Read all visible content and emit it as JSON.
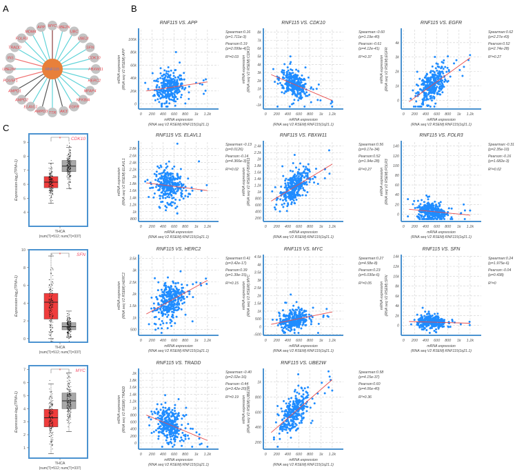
{
  "panel_labels": {
    "a": "A",
    "b": "B",
    "c": "C"
  },
  "network": {
    "center": {
      "label": "RNF115",
      "color": "#e8803a"
    },
    "node_color": "#c4c4c4",
    "label_color": "#e8414a",
    "nodes": [
      {
        "label": "MYC",
        "edge": "#8b3a3a"
      },
      {
        "label": "UBE2N",
        "edge": "#5fd3d8"
      },
      {
        "label": "UBC",
        "edge": "#5fd3d8"
      },
      {
        "label": "UBE2I",
        "edge": "#5fd3d8"
      },
      {
        "label": "SFN",
        "edge": "#5fd3d8"
      },
      {
        "label": "CDK10",
        "edge": "#5fd3d8"
      },
      {
        "label": "FBXW11",
        "edge": "#5fd3d8"
      },
      {
        "label": "HERC2",
        "edge": "#5fd3d8"
      },
      {
        "label": "MFAP4",
        "edge": "#5fd3d8"
      },
      {
        "label": "NFKBIA",
        "edge": "#5fd3d8"
      },
      {
        "label": "EGFR",
        "edge": "#5fd3d8"
      },
      {
        "label": "AK3",
        "edge": "#555555"
      },
      {
        "label": "TTR",
        "edge": "#5fd3d8"
      },
      {
        "label": "AMPD3",
        "edge": "#555555"
      },
      {
        "label": "ELAVL1",
        "edge": "#5fd3d8"
      },
      {
        "label": "AMPD2",
        "edge": "#555555"
      },
      {
        "label": "AMPD1",
        "edge": "#555555"
      },
      {
        "label": "POU5F1",
        "edge": "#f07070"
      },
      {
        "label": "UBE2W",
        "edge": "#5fd3d8"
      },
      {
        "label": "INS",
        "edge": "#f07070"
      },
      {
        "label": "TRADD",
        "edge": "#5fd3d8"
      },
      {
        "label": "FOLR3",
        "edge": "#5fd3d8"
      },
      {
        "label": "MDM4",
        "edge": "#5fd3d8"
      },
      {
        "label": "APP",
        "edge": "#5fd3d8"
      }
    ]
  },
  "chart_data": [
    {
      "type": "scatter",
      "title": "RNF115  VS.  APP",
      "xlabel": [
        "mRNA expression",
        "(RNA seq V2 RSEM):RNF115(1q21.1)"
      ],
      "ylabel": [
        "mRNA expression",
        "(RNA seq V2 RSEM):APP"
      ],
      "xlim": [
        -40,
        1400
      ],
      "ylim": [
        -8000,
        115000
      ],
      "xticks": [
        0,
        200,
        400,
        600,
        800,
        1000,
        1200
      ],
      "xtick_labels": [
        "0",
        "200",
        "400",
        "600",
        "800",
        "1k",
        "1.2k"
      ],
      "yticks": [
        0,
        20000,
        40000,
        60000,
        80000,
        100000
      ],
      "ytick_labels": [
        "0",
        "20k",
        "40k",
        "60k",
        "80k",
        "100k"
      ],
      "fit_line": [
        [
          100,
          20000
        ],
        [
          1200,
          34000
        ]
      ],
      "stats": [
        "Spearman:0.16",
        "(p=1.711e-3)",
        "Pearson:0.19",
        "(p=2.099e-4)",
        "R²=0.03"
      ],
      "grid": true
    },
    {
      "type": "scatter",
      "title": "RNF115  VS.  CDK10",
      "xlabel": [
        "mRNA expression",
        "(RNA seq V2 RSEM):RNF115(1q21.1)"
      ],
      "ylabel": [
        "mRNA expression",
        "(RNA seq V2 RSEM):CDK10"
      ],
      "xlim": [
        -40,
        1400
      ],
      "ylim": [
        -1500,
        8300
      ],
      "xticks": [
        0,
        200,
        400,
        600,
        800,
        1000,
        1200
      ],
      "xtick_labels": [
        "0",
        "200",
        "400",
        "600",
        "800",
        "1k",
        "1.2k"
      ],
      "yticks": [
        -1000,
        0,
        1000,
        2000,
        3000,
        4000,
        5000,
        6000,
        7000,
        8000
      ],
      "ytick_labels": [
        "-1k",
        "0",
        "1k",
        "2k",
        "3k",
        "4k",
        "5k",
        "6k",
        "7k",
        "8k"
      ],
      "fit_line": [
        [
          100,
          2750
        ],
        [
          1200,
          -450
        ]
      ],
      "stats": [
        "Spearman:-0.60",
        "(p=1.19e-40)",
        "Pearson:-0.61",
        "(p=4.12e-41)",
        "R²=0.37"
      ],
      "grid": true
    },
    {
      "type": "scatter",
      "title": "RNF115  VS.  EGFR",
      "xlabel": [
        "mRNA expression",
        "(RNA seq V2 RSEM):RNF115(1q21.1)"
      ],
      "ylabel": [
        "mRNA expression",
        "(RNA seq V2 RSEM):EGFR"
      ],
      "xlim": [
        -40,
        1400
      ],
      "ylim": [
        -600,
        4900
      ],
      "xticks": [
        0,
        200,
        400,
        600,
        800,
        1000,
        1200
      ],
      "xtick_labels": [
        "0",
        "200",
        "400",
        "600",
        "800",
        "1k",
        "1.2k"
      ],
      "yticks": [
        0,
        1000,
        2000,
        3000,
        4000
      ],
      "ytick_labels": [
        "0",
        "1k",
        "2k",
        "3k",
        "4k"
      ],
      "fit_line": [
        [
          100,
          -100
        ],
        [
          1200,
          2950
        ]
      ],
      "stats": [
        "Spearman:0.62",
        "(p=2.27e-43)",
        "Pearson:0.52",
        "(p=2.74e-28)",
        "R²=0.27"
      ],
      "grid": true
    },
    {
      "type": "scatter",
      "title": "RNF115  VS.  ELAVL1",
      "xlabel": [
        "mRNA expression",
        "(RNA seq V2 RSEM):RNF115(1q21.1)"
      ],
      "ylabel": [
        "mRNA expression",
        "(RNA seq V2 RSEM):ELAVL1"
      ],
      "xlim": [
        -40,
        1400
      ],
      "ylim": [
        720,
        2980
      ],
      "xticks": [
        0,
        200,
        400,
        600,
        800,
        1000,
        1200
      ],
      "xtick_labels": [
        "0",
        "200",
        "400",
        "600",
        "800",
        "1k",
        "1.2k"
      ],
      "yticks": [
        800,
        1000,
        1200,
        1400,
        1600,
        1800,
        2000,
        2200,
        2400,
        2600,
        2800
      ],
      "ytick_labels": [
        "800",
        "1k",
        "1.2k",
        "1.4k",
        "1.6k",
        "1.8k",
        "2k",
        "2.2k",
        "2.4k",
        "2.6k",
        "2.8k"
      ],
      "fit_line": [
        [
          100,
          1820
        ],
        [
          1200,
          1600
        ]
      ],
      "stats": [
        "Spearman:-0.13",
        "(p=0.0126)",
        "Pearson:-0.14",
        "(p=4.366e-3)",
        "R²=0.02"
      ],
      "grid": true
    },
    {
      "type": "scatter",
      "title": "RNF115  VS.  FBXW11",
      "xlabel": [
        "mRNA expression",
        "(RNA seq V2 RSEM):RNF115(1q21.1)"
      ],
      "ylabel": [
        "mRNA expression",
        "(RNA seq V2 RSEM):FBXW11"
      ],
      "xlim": [
        -40,
        1400
      ],
      "ylim": [
        100,
        2520
      ],
      "xticks": [
        0,
        200,
        400,
        600,
        800,
        1000,
        1200
      ],
      "xtick_labels": [
        "0",
        "200",
        "400",
        "600",
        "800",
        "1k",
        "1.2k"
      ],
      "yticks": [
        200,
        400,
        600,
        800,
        1000,
        1200,
        1400,
        1600,
        1800,
        2000,
        2200,
        2400
      ],
      "ytick_labels": [
        "200",
        "400",
        "600",
        "800",
        "1k",
        "1.2k",
        "1.4k",
        "1.6k",
        "1.8k",
        "2k",
        "2.2k",
        "2.4k"
      ],
      "fit_line": [
        [
          100,
          720
        ],
        [
          1200,
          1850
        ]
      ],
      "stats": [
        "Spearman:0.56",
        "(p=9.17e-34)",
        "Pearson:0.52",
        "(p=1.94e-28)",
        "R²=0.27"
      ],
      "grid": true
    },
    {
      "type": "scatter",
      "title": "RNF115  VS.  FOLR3",
      "xlabel": [
        "mRNA expression",
        "(RNA seq V2 RSEM):RNF115(1q21.1)"
      ],
      "ylabel": [
        "mRNA expression",
        "(RNA seq V2 RSEM):FOLR3"
      ],
      "xlim": [
        -40,
        1400
      ],
      "ylim": [
        -15,
        148
      ],
      "xticks": [
        0,
        200,
        400,
        600,
        800,
        1000,
        1200
      ],
      "xtick_labels": [
        "0",
        "200",
        "400",
        "600",
        "800",
        "1k",
        "1.2k"
      ],
      "yticks": [
        0,
        20,
        40,
        60,
        80,
        100,
        120,
        140
      ],
      "ytick_labels": [
        "0",
        "20",
        "40",
        "60",
        "80",
        "100",
        "120",
        "140"
      ],
      "fit_line": [
        [
          100,
          10
        ],
        [
          1200,
          -2
        ]
      ],
      "stats": [
        "Spearman:-0.31",
        "(p=2.35e-10)",
        "Pearson:-0.16",
        "(p=1.682e-3)",
        "R²=0.02"
      ],
      "grid": true
    },
    {
      "type": "scatter",
      "title": "RNF115  VS.  HERC2",
      "xlabel": [
        "mRNA expression",
        "(RNA seq V2 RSEM):RNF115(1q21.1)"
      ],
      "ylabel": [
        "mRNA expression",
        "(RNA seq V2 RSEM):HERC2"
      ],
      "xlim": [
        -40,
        1400
      ],
      "ylim": [
        250,
        3600
      ],
      "xticks": [
        0,
        200,
        400,
        600,
        800,
        1000,
        1200
      ],
      "xtick_labels": [
        "0",
        "200",
        "400",
        "600",
        "800",
        "1k",
        "1.2k"
      ],
      "yticks": [
        500,
        1000,
        1500,
        2000,
        2500,
        3000,
        3500
      ],
      "ytick_labels": [
        "500",
        "1k",
        "1.5k",
        "2k",
        "2.5k",
        "3k",
        "3.5k"
      ],
      "fit_line": [
        [
          100,
          1150
        ],
        [
          1200,
          2570
        ]
      ],
      "stats": [
        "Spearman:0.41",
        "(p=3.42e-17)",
        "Pearson:0.39",
        "(p=1.39e-15)",
        "R²=0.15"
      ],
      "grid": true
    },
    {
      "type": "scatter",
      "title": "RNF115  VS.  MYC",
      "xlabel": [
        "mRNA expression",
        "(RNA seq V2 RSEM):RNF115(1q21.1)"
      ],
      "ylabel": [
        "mRNA expression",
        "(RNA seq V2 RSEM):MYC"
      ],
      "xlim": [
        -40,
        1400
      ],
      "ylim": [
        -560,
        4550
      ],
      "xticks": [
        0,
        200,
        400,
        600,
        800,
        1000,
        1200
      ],
      "xtick_labels": [
        "0",
        "200",
        "400",
        "600",
        "800",
        "1k",
        "1.2k"
      ],
      "yticks": [
        -500,
        0,
        500,
        1000,
        1500,
        2000,
        2500,
        3000,
        3500,
        4000,
        4500
      ],
      "ytick_labels": [
        "-500",
        "0",
        "500",
        "1k",
        "1.5k",
        "2k",
        "2.5k",
        "3k",
        "3.5k",
        "4k",
        "4.5k"
      ],
      "fit_line": [
        [
          100,
          150
        ],
        [
          1200,
          950
        ]
      ],
      "stats": [
        "Spearman:0.27",
        "(p=4.58e-8)",
        "Pearson:0.23",
        "(p=5.030e-6)",
        "R²=0.05"
      ],
      "grid": true
    },
    {
      "type": "scatter",
      "title": "RNF115  VS.  SFN",
      "xlabel": [
        "mRNA expression",
        "(RNA seq V2 RSEM):RNF115(1q21.1)"
      ],
      "ylabel": [
        "mRNA expression",
        "(RNA seq V2 RSEM):SFN"
      ],
      "xlim": [
        -40,
        1400
      ],
      "ylim": [
        -2000,
        14100
      ],
      "xticks": [
        0,
        200,
        400,
        600,
        800,
        1000,
        1200
      ],
      "xtick_labels": [
        "0",
        "200",
        "400",
        "600",
        "800",
        "1k",
        "1.2k"
      ],
      "yticks": [
        0,
        2000,
        4000,
        6000,
        8000,
        10000,
        12000,
        14000
      ],
      "ytick_labels": [
        "0",
        "2k",
        "4k",
        "6k",
        "8k",
        "10k",
        "12k",
        "14k"
      ],
      "fit_line": [
        [
          100,
          800
        ],
        [
          1200,
          450
        ]
      ],
      "stats": [
        "Spearman:0.24",
        "(p=1.975e-6)",
        "Pearson:-0.04",
        "(p=0.438)",
        "R²=0"
      ],
      "grid": true
    },
    {
      "type": "scatter",
      "title": "RNF115  VS.  TRADD",
      "xlabel": [
        "mRNA expression",
        "(RNA seq V2 RSEM):RNF115(1q21.1)"
      ],
      "ylabel": [
        "mRNA expression",
        "(RNA seq V2 RSEM):TRADD"
      ],
      "xlim": [
        -40,
        1400
      ],
      "ylim": [
        -180,
        2100
      ],
      "xticks": [
        0,
        200,
        400,
        600,
        800,
        1000,
        1200
      ],
      "xtick_labels": [
        "0",
        "200",
        "400",
        "600",
        "800",
        "1k",
        "1.2k"
      ],
      "yticks": [
        0,
        200,
        400,
        600,
        800,
        1000,
        1200,
        1400,
        1600,
        1800,
        2000
      ],
      "ytick_labels": [
        "0",
        "200",
        "400",
        "600",
        "800",
        "1k",
        "1.2k",
        "1.4k",
        "1.6k",
        "1.8k",
        "2k"
      ],
      "fit_line": [
        [
          100,
          800
        ],
        [
          1200,
          70
        ]
      ],
      "stats": [
        "Spearman:-0.40",
        "(p=2.02e-16)",
        "Pearson:-0.44",
        "(p=3.42e-20)",
        "R²=0.19"
      ],
      "grid": true
    },
    {
      "type": "scatter",
      "title": "RNF115  VS.  UBE2W",
      "xlabel": [
        "mRNA expression",
        "(RNA seq V2 RSEM):RNF115(1q21.1)"
      ],
      "ylabel": [
        "mRNA expression",
        "(RNA seq V2 RSEM):UBE2W"
      ],
      "xlim": [
        -40,
        1400
      ],
      "ylim": [
        110,
        1160
      ],
      "xticks": [
        0,
        200,
        400,
        600,
        800,
        1000,
        1200
      ],
      "xtick_labels": [
        "0",
        "200",
        "400",
        "600",
        "800",
        "1k",
        "1.2k"
      ],
      "yticks": [
        200,
        400,
        600,
        800,
        1000
      ],
      "ytick_labels": [
        "200",
        "400",
        "600",
        "800",
        "1k"
      ],
      "fit_line": [
        [
          100,
          330
        ],
        [
          1200,
          1030
        ]
      ],
      "stats": [
        "Spearman:0.58",
        "(p=4.15e-37)",
        "Pearson:0.60",
        "(p=4.06e-40)",
        "R²=0.36"
      ],
      "grid": true
    },
    {
      "type": "box",
      "gene": "CDK10",
      "significance": "*",
      "ylabel": "Expression-log₂(TPM+1)",
      "xlabel": "THCA",
      "sublabel": "(num(T)=512; num(T)=337)",
      "ylim": [
        3,
        9.6
      ],
      "yticks": [
        4,
        5,
        6,
        7,
        8,
        9
      ],
      "boxes": [
        {
          "color": "#f03c3c",
          "whisker_low": 4.65,
          "q1": 5.75,
          "median": 6.15,
          "q3": 6.55,
          "whisker_high": 7.5
        },
        {
          "color": "#a8a8a8",
          "whisker_low": 5.7,
          "q1": 6.9,
          "median": 7.3,
          "q3": 7.7,
          "whisker_high": 8.65
        }
      ]
    },
    {
      "type": "box",
      "gene": "SFN",
      "significance": "*",
      "ylabel": "Expression-log₂(TPM+1)",
      "xlabel": "THCA",
      "sublabel": "(num(T)=512; num(T)=337)",
      "ylim": [
        -0.4,
        10
      ],
      "yticks": [
        0,
        2,
        4,
        6,
        8,
        10
      ],
      "boxes": [
        {
          "color": "#f03c3c",
          "whisker_low": 0,
          "q1": 2.2,
          "median": 4.1,
          "q3": 5.1,
          "whisker_high": 9.3
        },
        {
          "color": "#a8a8a8",
          "whisker_low": 0.2,
          "q1": 1.0,
          "median": 1.35,
          "q3": 1.8,
          "whisker_high": 3.1
        }
      ]
    },
    {
      "type": "box",
      "gene": "MYC",
      "significance": "*",
      "ylabel": "Expression-log₂(TPM+1)",
      "xlabel": "THCA",
      "sublabel": "(num(T)=512; num(T)=337)",
      "ylim": [
        0.2,
        7.3
      ],
      "yticks": [
        1,
        2,
        3,
        4,
        5,
        6,
        7
      ],
      "boxes": [
        {
          "color": "#f03c3c",
          "whisker_low": 0.55,
          "q1": 2.6,
          "median": 3.3,
          "q3": 3.95,
          "whisker_high": 5.9
        },
        {
          "color": "#a8a8a8",
          "whisker_low": 2.25,
          "q1": 4.0,
          "median": 4.6,
          "q3": 5.2,
          "whisker_high": 6.75
        }
      ]
    }
  ],
  "colors": {
    "axis": "#4a92d0",
    "point": "#1f8cff",
    "fit": "#e84a4a",
    "grid": "#cfcfcf",
    "gene_label": "#f0506a"
  }
}
